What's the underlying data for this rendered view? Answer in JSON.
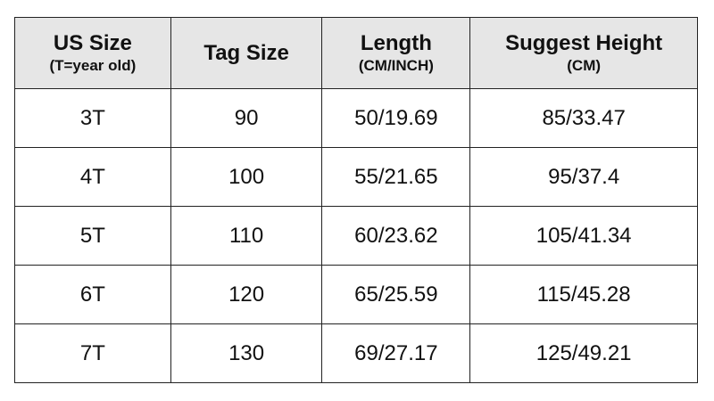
{
  "headers": [
    {
      "main": "US Size",
      "sub": "(T=year old)"
    },
    {
      "main": "Tag Size",
      "sub": ""
    },
    {
      "main": "Length",
      "sub": "(CM/INCH)"
    },
    {
      "main": "Suggest Height",
      "sub": "(CM)"
    }
  ],
  "rows": [
    [
      "3T",
      "90",
      "50/19.69",
      "85/33.47"
    ],
    [
      "4T",
      "100",
      "55/21.65",
      "95/37.4"
    ],
    [
      "5T",
      "110",
      "60/23.62",
      "105/41.34"
    ],
    [
      "6T",
      "120",
      "65/25.59",
      "115/45.28"
    ],
    [
      "7T",
      "130",
      "69/27.17",
      "125/49.21"
    ]
  ],
  "colors": {
    "header_bg": "#e6e6e6",
    "border": "#222222"
  }
}
